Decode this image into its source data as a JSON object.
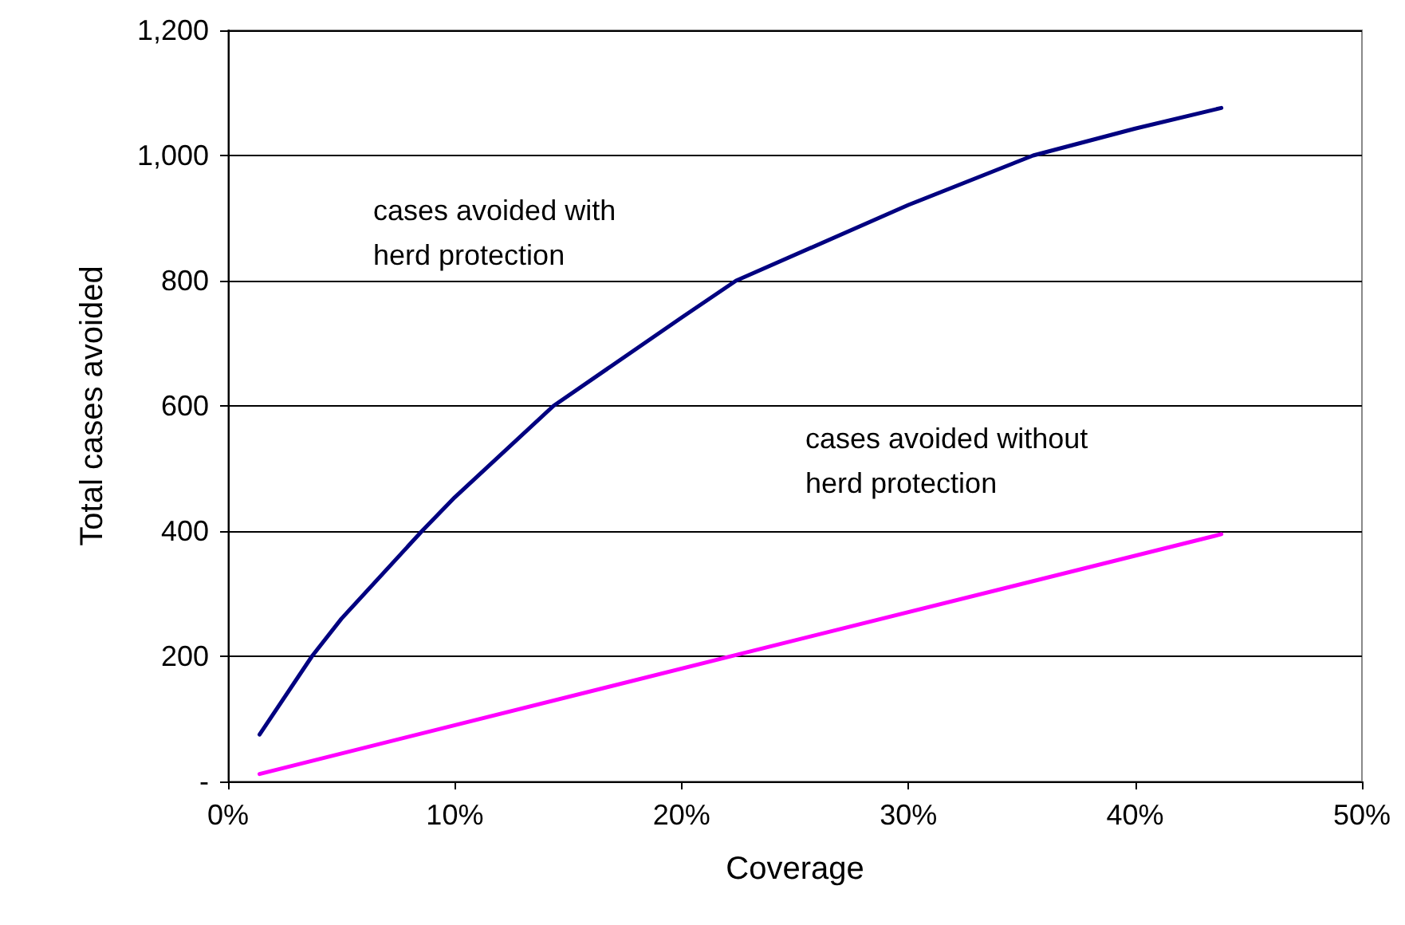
{
  "chart_data": {
    "type": "line",
    "xlabel": "Coverage",
    "ylabel": "Total cases avoided",
    "series": [
      {
        "name": "cases avoided with\nherd protection",
        "color": "#000080",
        "x": [
          0.0139,
          0.037,
          0.05,
          0.0855,
          0.1,
          0.1435,
          0.2,
          0.224,
          0.3,
          0.355,
          0.4,
          0.438
        ],
        "values": [
          75,
          200,
          260,
          400,
          454,
          600,
          741,
          800,
          921,
          1000,
          1043,
          1076
        ]
      },
      {
        "name": "cases avoided without\nherd protection",
        "color": "#ff00ff",
        "x": [
          0.0139,
          0.224,
          0.438
        ],
        "values": [
          12,
          202,
          395
        ]
      }
    ],
    "xlim": [
      0,
      0.5
    ],
    "xticks": [
      {
        "value": 0,
        "label": "0%"
      },
      {
        "value": 0.1,
        "label": "10%"
      },
      {
        "value": 0.2,
        "label": "20%"
      },
      {
        "value": 0.3,
        "label": "30%"
      },
      {
        "value": 0.4,
        "label": "40%"
      },
      {
        "value": 0.5,
        "label": "50%"
      }
    ],
    "ylim": [
      0,
      1200
    ],
    "yticks": [
      {
        "value": 0,
        "label": "-"
      },
      200,
      400,
      600,
      800,
      {
        "value": 1000,
        "label": "1,000"
      },
      {
        "value": 1200,
        "label": "1,200"
      }
    ],
    "grid": "y",
    "marker": "none",
    "line_style": "solid"
  }
}
